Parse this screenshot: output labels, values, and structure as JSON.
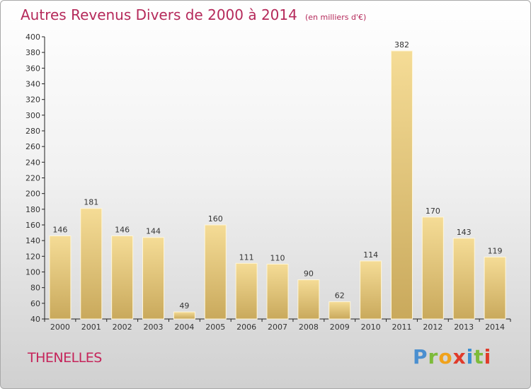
{
  "title": {
    "main": "Autres Revenus Divers de 2000 à 2014",
    "unit": "(en milliers d'€)"
  },
  "commune": "THENELLES",
  "logo": {
    "text": "Proxiti"
  },
  "colors": {
    "title": "#b5295a",
    "bar_light": "#f5dc96",
    "bar_dark": "#c9a95c",
    "background_top": "#ffffff",
    "background_bottom": "#d0d0d0"
  },
  "chart_data": {
    "type": "bar",
    "title": "Autres Revenus Divers de 2000 à 2014",
    "subtitle": "(en milliers d'€)",
    "categories": [
      "2000",
      "2001",
      "2002",
      "2003",
      "2004",
      "2005",
      "2006",
      "2007",
      "2008",
      "2009",
      "2010",
      "2011",
      "2012",
      "2013",
      "2014"
    ],
    "values": [
      146,
      181,
      146,
      144,
      49,
      160,
      111,
      110,
      90,
      62,
      114,
      382,
      170,
      143,
      119
    ],
    "data_labels": [
      "146",
      "181",
      "146",
      "144",
      "49",
      "160",
      "111",
      "110",
      "90",
      "62",
      "114",
      "382",
      "170",
      "143",
      "119"
    ],
    "ylim": [
      40,
      400
    ],
    "yticks": [
      40,
      60,
      80,
      100,
      120,
      140,
      160,
      180,
      200,
      220,
      240,
      260,
      280,
      300,
      320,
      340,
      360,
      380,
      400
    ],
    "grid": false,
    "legend": "none"
  }
}
